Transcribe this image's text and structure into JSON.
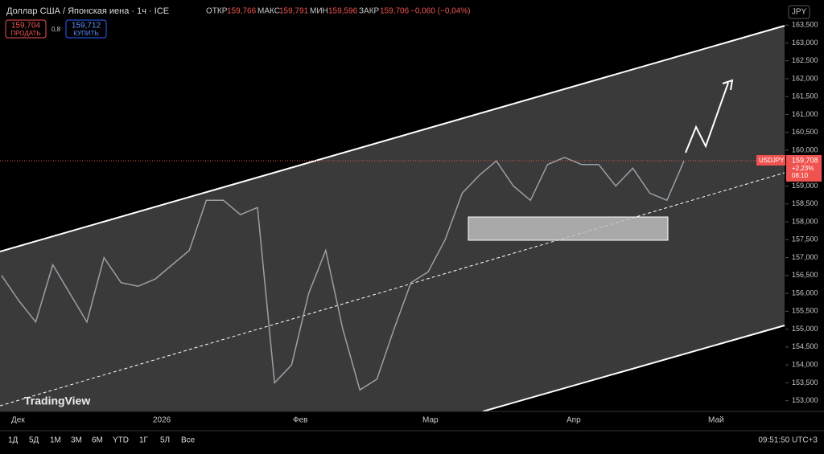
{
  "header": {
    "symbol": "Доллар США / Японская иена · 1ч · ICE",
    "open_label": "ОТКР",
    "open": "159,766",
    "high_label": "МАКС",
    "high": "159,791",
    "low_label": "МИН",
    "low": "159,596",
    "close_label": "ЗАКР",
    "close": "159,706",
    "change": "−0,060 (−0,04%)",
    "sell_price": "159,704",
    "sell_label": "ПРОДАТЬ",
    "spread": "0,8",
    "buy_price": "159,712",
    "buy_label": "КУПИТЬ",
    "currency": "JPY"
  },
  "chart_data": {
    "type": "line",
    "ylim": [
      152.7,
      164.2
    ],
    "yticks": [
      {
        "value": 153,
        "label": "153,000"
      },
      {
        "value": 153.5,
        "label": "153,500"
      },
      {
        "value": 154,
        "label": "154,000"
      },
      {
        "value": 154.5,
        "label": "154,500"
      },
      {
        "value": 155,
        "label": "155,000"
      },
      {
        "value": 155.5,
        "label": "155,500"
      },
      {
        "value": 156,
        "label": "156,000"
      },
      {
        "value": 156.5,
        "label": "156,500"
      },
      {
        "value": 157,
        "label": "157,000"
      },
      {
        "value": 157.5,
        "label": "157,500"
      },
      {
        "value": 158,
        "label": "158,000"
      },
      {
        "value": 158.5,
        "label": "158,500"
      },
      {
        "value": 159,
        "label": "159,000"
      },
      {
        "value": 160,
        "label": "160,000"
      },
      {
        "value": 160.5,
        "label": "160,500"
      },
      {
        "value": 161,
        "label": "161,000"
      },
      {
        "value": 161.5,
        "label": "161,500"
      },
      {
        "value": 162,
        "label": "162,000"
      },
      {
        "value": 162.5,
        "label": "162,500"
      },
      {
        "value": 163,
        "label": "163,000"
      },
      {
        "value": 163.5,
        "label": "163,500"
      }
    ],
    "x_labels": [
      "Дек",
      "2026",
      "Фев",
      "Мар",
      "Апр",
      "Май"
    ],
    "values": [
      156.5,
      155.8,
      155.2,
      156.8,
      156,
      155.2,
      157,
      156.3,
      156.2,
      156.4,
      156.8,
      157.2,
      158.6,
      158.6,
      158.2,
      158.4,
      153.5,
      154,
      156,
      157.2,
      155,
      153.3,
      153.6,
      155,
      156.3,
      156.6,
      157.5,
      158.8,
      159.3,
      159.7,
      159,
      158.6,
      159.6,
      159.8,
      159.6,
      159.6,
      159,
      159.5,
      158.8,
      158.6,
      159.7
    ],
    "color": "#9aa0a6",
    "last_price": {
      "symbol": "USDJPY",
      "value": 159.708,
      "label": "159,708",
      "change": "+2,23%",
      "countdown": "08:10"
    }
  },
  "toolbar": {
    "ranges": [
      "1Д",
      "5Д",
      "1М",
      "3М",
      "6М",
      "YTD",
      "1Г",
      "5Л",
      "Все"
    ],
    "clock": "09:51:50 UTC+3"
  },
  "brand": "TradingView"
}
